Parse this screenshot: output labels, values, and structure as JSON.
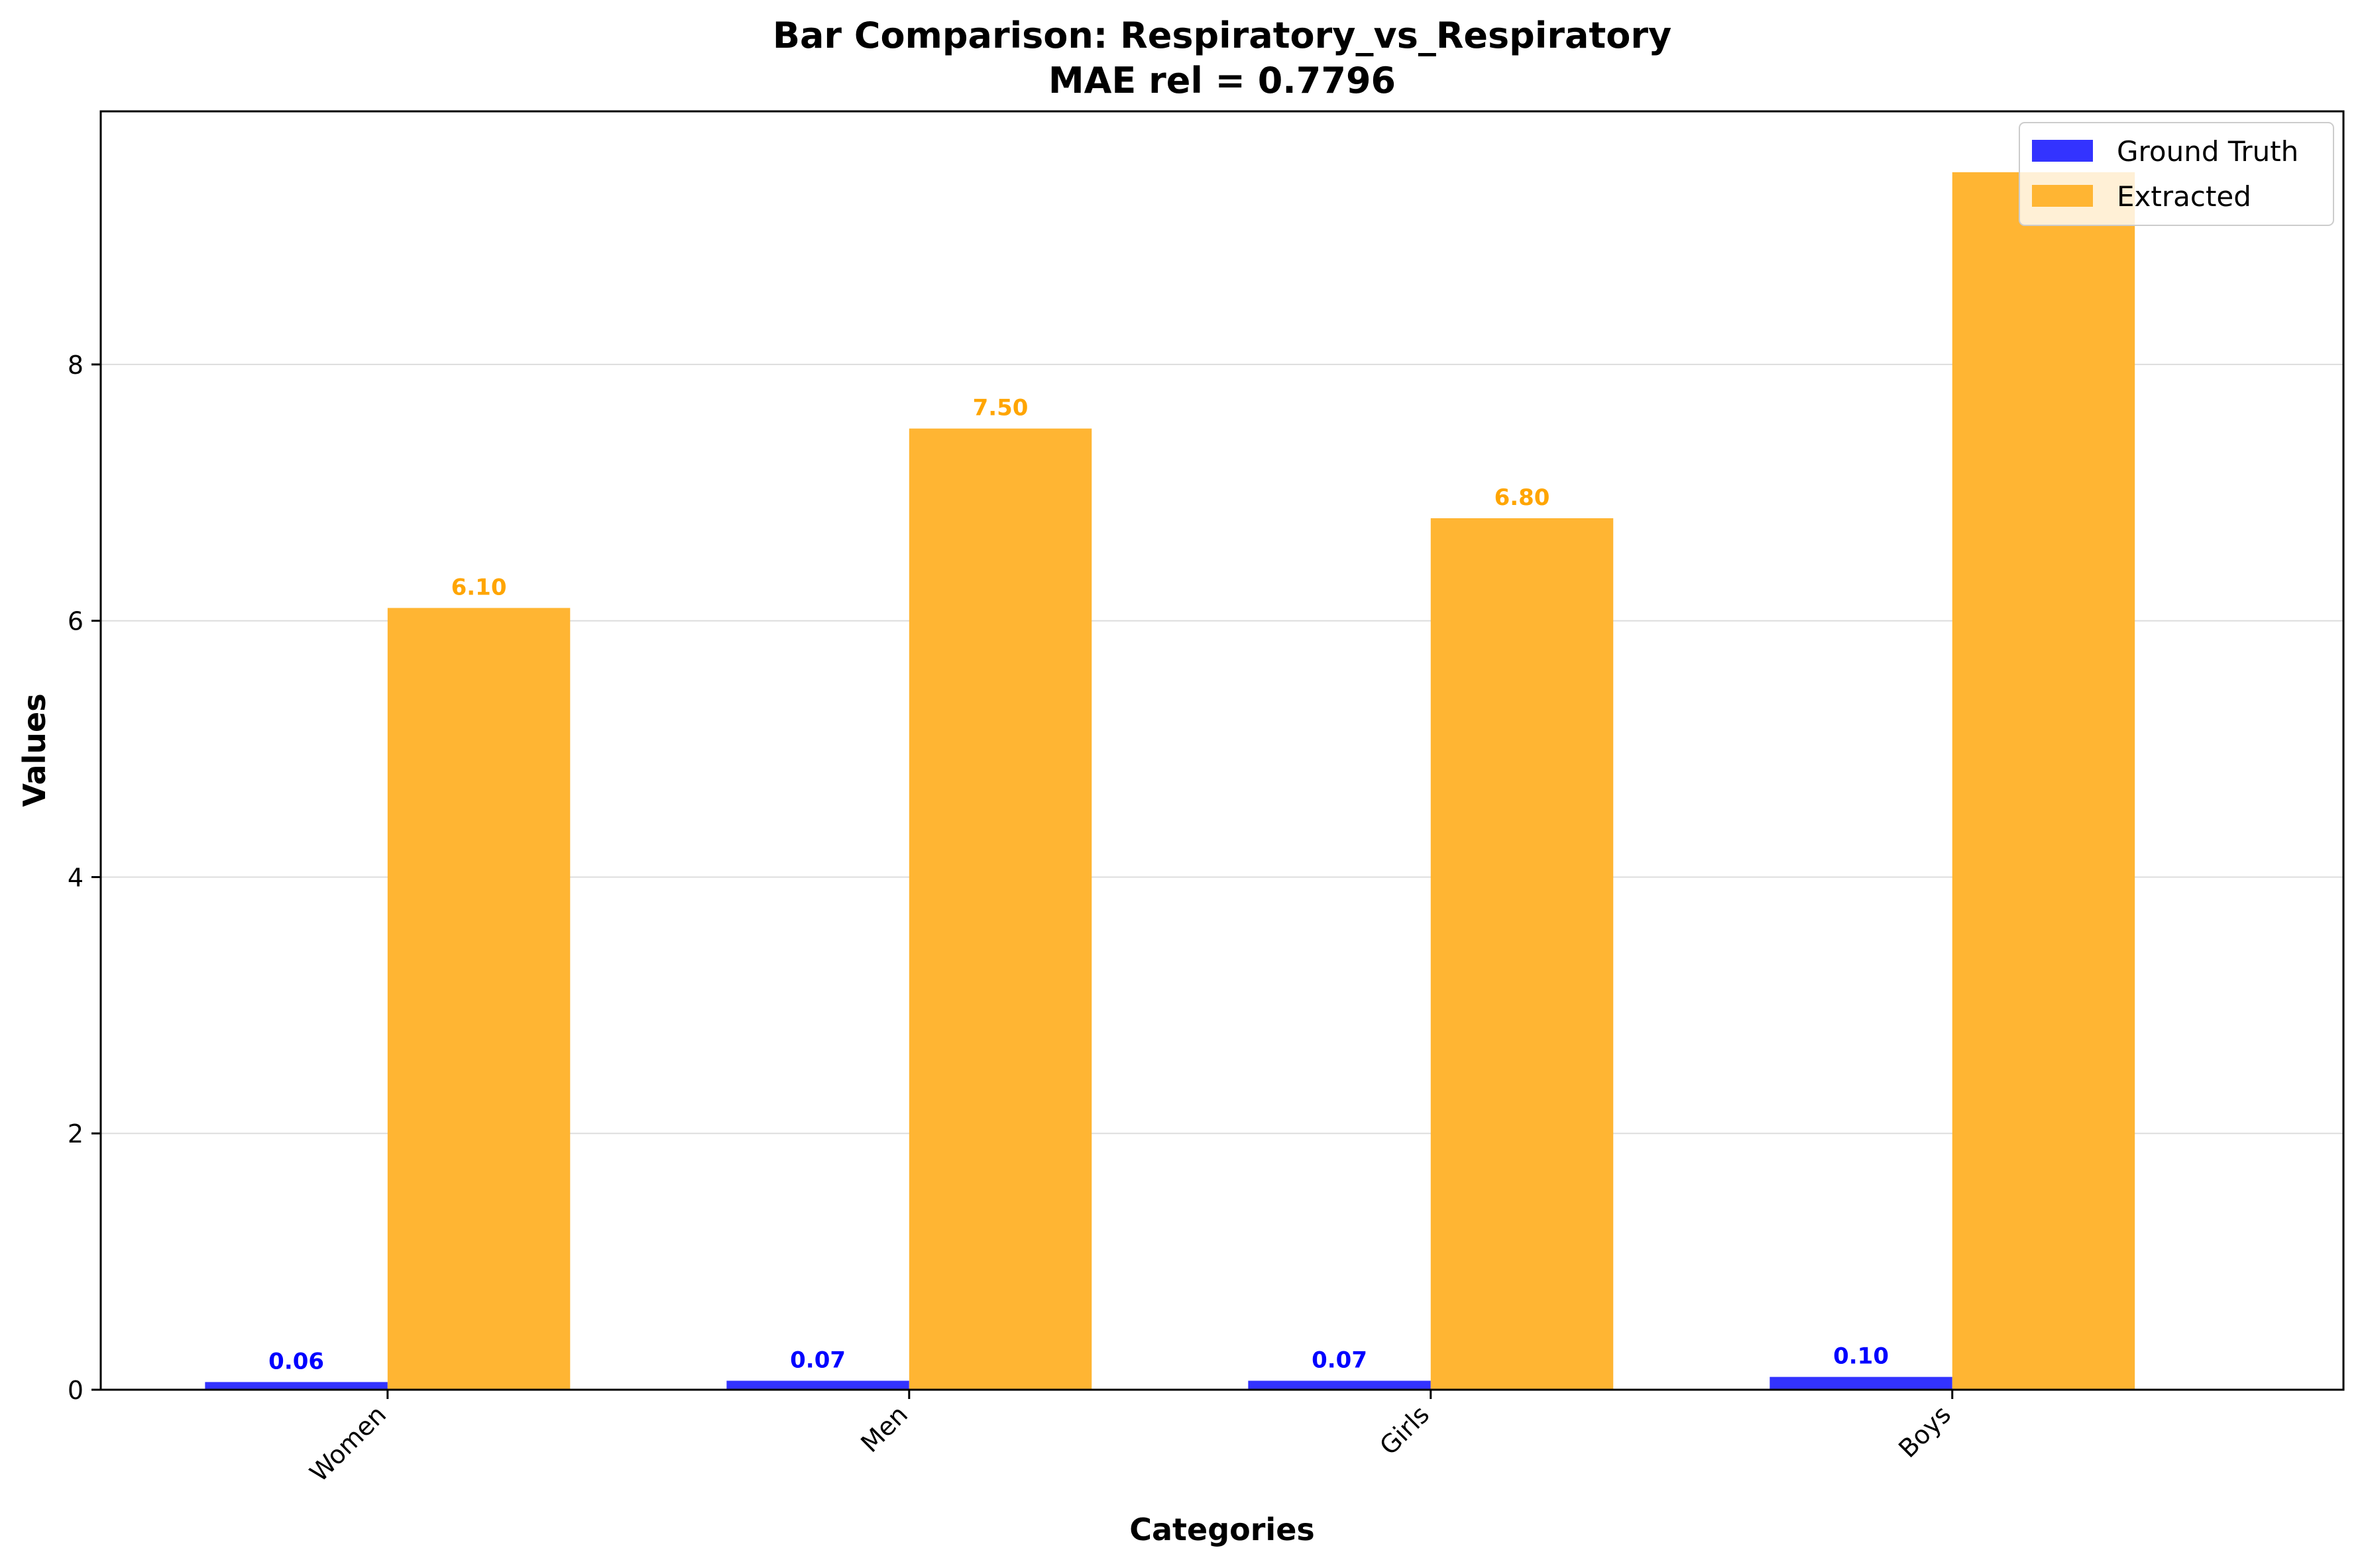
{
  "chart_data": {
    "type": "bar",
    "title": "Bar Comparison: Respiratory_vs_Respiratory",
    "subtitle": "MAE rel = 0.7796",
    "xlabel": "Categories",
    "ylabel": "Values",
    "categories": [
      "Women",
      "Men",
      "Girls",
      "Boys"
    ],
    "series": [
      {
        "name": "Ground Truth",
        "values": [
          0.06,
          0.07,
          0.07,
          0.1
        ],
        "color": "#3333ff",
        "label_color": "#0000ff"
      },
      {
        "name": "Extracted",
        "values": [
          6.1,
          7.5,
          6.8,
          9.5
        ],
        "color": "#ffb533",
        "label_color": "#ffa500"
      }
    ],
    "data_labels": [
      [
        "0.06",
        "0.07",
        "0.07",
        "0.10"
      ],
      [
        "6.10",
        "7.50",
        "6.80",
        ""
      ]
    ],
    "yticks": [
      0,
      2,
      4,
      6,
      8
    ],
    "ylim": [
      0,
      9.975
    ],
    "grid": "y",
    "legend_position": "top-right"
  }
}
